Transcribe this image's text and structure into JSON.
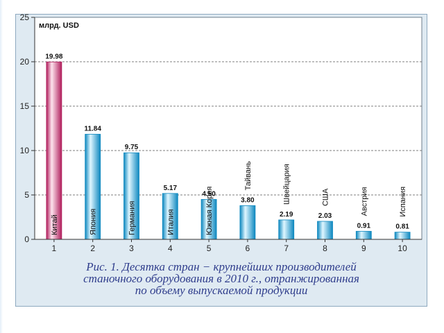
{
  "chart_data": {
    "type": "bar",
    "categories": [
      "1",
      "2",
      "3",
      "4",
      "5",
      "6",
      "7",
      "8",
      "9",
      "10"
    ],
    "country_labels": [
      "Китай",
      "Япония",
      "Германия",
      "Италия",
      "Южная Корея",
      "Тайвань",
      "Швейцария",
      "США",
      "Австрия",
      "Испания"
    ],
    "values": [
      19.98,
      11.84,
      9.75,
      5.17,
      4.5,
      3.8,
      2.19,
      2.03,
      0.91,
      0.81
    ],
    "value_labels": [
      "19.98",
      "11.84",
      "9.75",
      "5.17",
      "4.50",
      "3.80",
      "2.19",
      "2.03",
      "0.91",
      "0.81"
    ],
    "unit_label": "млрд. USD",
    "y_ticks": [
      "0",
      "5",
      "10",
      "15",
      "20",
      "25"
    ],
    "ylim": [
      0,
      25
    ],
    "grid": true,
    "highlight_index": 0,
    "colors": {
      "bar": "#36c3ee",
      "bar_light": "#dff6ff",
      "bar_dark": "#0e88bf",
      "highlight": "#e94d8c",
      "highlight_light": "#fde3ee",
      "highlight_dark": "#b01e5c",
      "plot_bg": "#ffffff",
      "caption": "#2f3d8c"
    }
  },
  "caption_lines": [
    "Рис. 1. Десятка  стран − крупнейших производителей",
    "станочного оборудования в 2010 г., отранжированная",
    "по объему выпускаемой продукции"
  ]
}
